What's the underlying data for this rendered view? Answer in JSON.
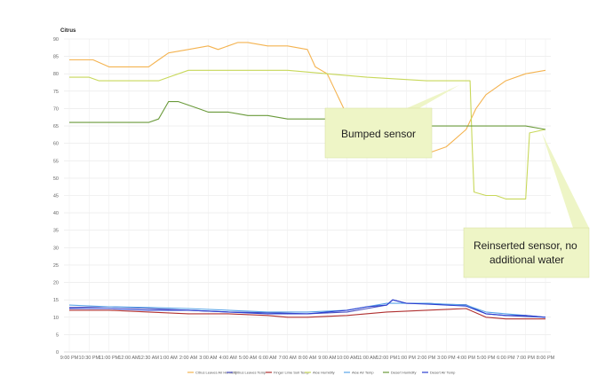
{
  "chart_data": {
    "type": "line",
    "title": "Citrus",
    "ylim": [
      0,
      90
    ],
    "y_ticks": [
      0,
      5,
      10,
      15,
      20,
      25,
      30,
      35,
      40,
      45,
      50,
      55,
      60,
      65,
      70,
      75,
      80,
      85,
      90
    ],
    "x_tick_labels": [
      "9:00 PM",
      "10:30 PM",
      "11:00 PM",
      "12:00 AM",
      "12:30 AM",
      "1:00 AM",
      "2:00 AM",
      "3:00 AM",
      "4:00 AM",
      "5:00 AM",
      "6:00 AM",
      "7:00 AM",
      "8:00 AM",
      "9:00 AM",
      "10:00 AM",
      "11:00 AM",
      "12:00 PM",
      "1:00 PM",
      "2:00 PM",
      "3:00 PM",
      "4:00 PM",
      "5:00 PM",
      "6:00 PM",
      "7:00 PM",
      "8:00 PM"
    ],
    "grid": true,
    "legend_position": "bottom",
    "series": [
      {
        "name": "Citrus Leaves Air Humidity",
        "color": "#F4B350",
        "x": [
          0,
          1.2,
          2,
          3.5,
          4,
          4.5,
          5,
          6,
          7,
          7.5,
          8,
          8.5,
          9,
          10,
          11,
          12,
          12.4,
          13,
          13.5,
          14,
          14.5,
          15,
          15.5,
          16,
          17,
          18,
          18.5,
          19,
          20,
          20.5,
          21,
          21.5,
          22,
          23,
          24
        ],
        "y": [
          84,
          84,
          82,
          82,
          82,
          84,
          86,
          87,
          88,
          87,
          88,
          89,
          89,
          88,
          88,
          87,
          82,
          80,
          74,
          68,
          64,
          61,
          60,
          59,
          58,
          57,
          58,
          59,
          64,
          70,
          74,
          76,
          78,
          80,
          81
        ]
      },
      {
        "name": "Citrus Leaves Temp",
        "color": "#4A4FC0",
        "x": [
          0,
          2,
          4,
          6,
          8,
          10,
          12,
          14,
          15,
          16,
          16.3,
          17,
          18,
          19,
          20,
          21,
          22,
          23,
          24
        ],
        "y": [
          12.8,
          13,
          12.5,
          12,
          11.5,
          11.3,
          11,
          11.5,
          12.5,
          13.5,
          15,
          14,
          14,
          13.7,
          13.6,
          11,
          10.5,
          10.2,
          10
        ]
      },
      {
        "name": "Finger Lime Soil Temp",
        "color": "#B03030",
        "x": [
          0,
          2,
          4,
          6,
          8,
          10,
          11,
          12,
          14,
          16,
          18,
          20,
          21,
          22,
          24
        ],
        "y": [
          12,
          12,
          11.5,
          11,
          11,
          10.5,
          10,
          10,
          10.5,
          11.5,
          12,
          12.5,
          10,
          9.5,
          9.5
        ]
      },
      {
        "name": "Aloe Humidity",
        "color": "#C8D85A",
        "x": [
          0,
          1,
          1.5,
          3,
          4.5,
          5,
          6,
          8,
          11,
          13,
          15,
          18,
          20.2,
          20.3,
          20.4,
          21,
          21.5,
          22,
          22.5,
          23,
          23.2,
          24
        ],
        "y": [
          79,
          79,
          78,
          78,
          78,
          79,
          81,
          81,
          81,
          80,
          79,
          78,
          78,
          60,
          46,
          45,
          45,
          44,
          44,
          44,
          63,
          64
        ]
      },
      {
        "name": "Aloe Air Temp",
        "color": "#5AA5E8",
        "x": [
          0,
          2,
          4,
          6,
          8,
          10,
          12,
          14,
          16,
          18,
          20,
          21,
          22,
          23,
          24
        ],
        "y": [
          13.5,
          13,
          12.8,
          12.5,
          12,
          11.5,
          11.5,
          12,
          14,
          14,
          13.5,
          11.5,
          11,
          10.5,
          10
        ]
      },
      {
        "name": "Desert Humidity",
        "color": "#6A9A3A",
        "x": [
          0,
          2,
          3,
          3.5,
          4,
          4.5,
          5,
          5.5,
          6,
          6.5,
          7,
          7.5,
          8,
          9,
          10,
          11,
          12,
          13,
          14,
          15,
          16,
          18,
          20,
          22,
          23,
          24
        ],
        "y": [
          66,
          66,
          66,
          66,
          66,
          67,
          72,
          72,
          71,
          70,
          69,
          69,
          69,
          68,
          68,
          67,
          67,
          67,
          66,
          66,
          65,
          65,
          65,
          65,
          65,
          64
        ]
      },
      {
        "name": "Desert Air Temp",
        "color": "#2B3FD0",
        "x": [
          0,
          2,
          4,
          6,
          8,
          10,
          12,
          13,
          14,
          15,
          16,
          16.3,
          17,
          18,
          19,
          20,
          21,
          22,
          23,
          24
        ],
        "y": [
          12.5,
          12.5,
          12,
          12,
          11.5,
          11,
          11,
          11.5,
          12,
          13,
          13.5,
          15,
          14,
          13.8,
          13.5,
          13.2,
          11,
          10.5,
          10.5,
          10
        ]
      }
    ]
  },
  "annotations": [
    {
      "text": "Bumped sensor"
    },
    {
      "lines": [
        "Reinserted sensor, no",
        "additional water"
      ]
    }
  ]
}
